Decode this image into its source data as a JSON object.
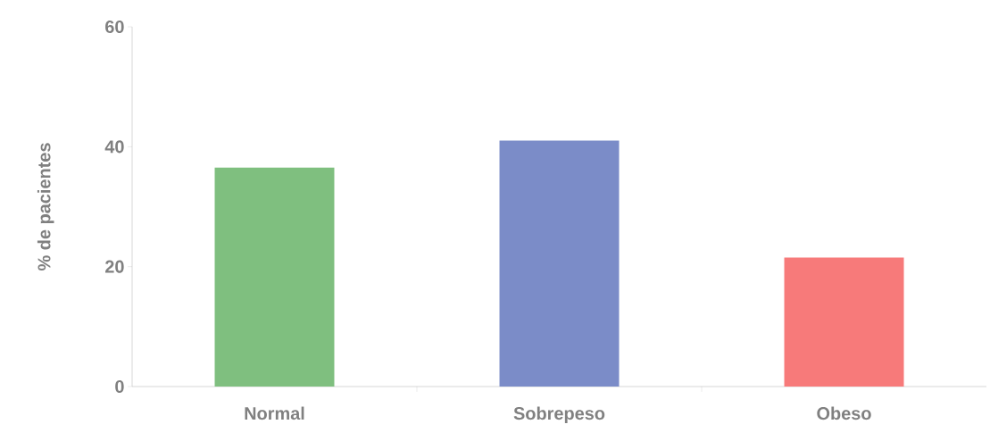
{
  "chart_data": {
    "type": "bar",
    "ylabel": "% de pacientes",
    "categories": [
      "Normal",
      "Sobrepeso",
      "Obeso"
    ],
    "values": [
      36.5,
      41,
      21.5
    ],
    "colors": [
      "#7fbf7f",
      "#7b8cc8",
      "#f77a7a"
    ],
    "ylim": [
      0,
      60
    ],
    "yticks": [
      0,
      20,
      40,
      60
    ]
  }
}
